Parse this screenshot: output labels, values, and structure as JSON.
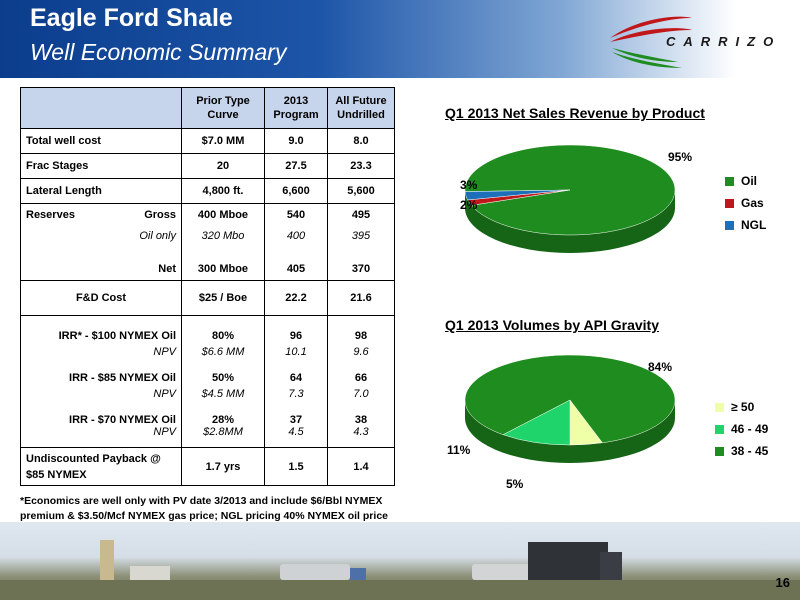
{
  "header": {
    "title": "Eagle Ford Shale",
    "subtitle": "Well Economic Summary"
  },
  "logo": {
    "text": "CARRIZO"
  },
  "table": {
    "headers": [
      "",
      "Prior Type Curve",
      "2013 Program",
      "All Future Undrilled"
    ],
    "rows": {
      "total_cost": {
        "label": "Total well cost",
        "v1": "$7.0 MM",
        "v2": "9.0",
        "v3": "8.0"
      },
      "frac": {
        "label": "Frac Stages",
        "v1": "20",
        "v2": "27.5",
        "v3": "23.3"
      },
      "lateral": {
        "label": "Lateral Length",
        "v1": "4,800 ft.",
        "v2": "6,600",
        "v3": "5,600"
      },
      "reserves": {
        "label": "Reserves",
        "gross_label": "Gross",
        "v1": "400 Mboe",
        "v2": "540",
        "v3": "495"
      },
      "oil_only": {
        "label": "Oil only",
        "v1": "320 Mbo",
        "v2": "400",
        "v3": "395"
      },
      "net": {
        "label": "Net",
        "v1": "300 Mboe",
        "v2": "405",
        "v3": "370"
      },
      "fd": {
        "label": "F&D Cost",
        "v1": "$25 / Boe",
        "v2": "22.2",
        "v3": "21.6"
      },
      "irr100": {
        "label": "IRR* -    $100 NYMEX Oil",
        "v1": "80%",
        "v2": "96",
        "v3": "98"
      },
      "npv100": {
        "label": "NPV",
        "v1": "$6.6 MM",
        "v2": "10.1",
        "v3": "9.6"
      },
      "irr85": {
        "label": "IRR -  $85  NYMEX Oil",
        "v1": "50%",
        "v2": "64",
        "v3": "66"
      },
      "npv85": {
        "label": "NPV",
        "v1": "$4.5 MM",
        "v2": "7.3",
        "v3": "7.0"
      },
      "irr70": {
        "label": "IRR - $70  NYMEX Oil",
        "v1": "28%",
        "v2": "37",
        "v3": "38"
      },
      "npv70": {
        "label": "NPV",
        "v1": "$2.8MM",
        "v2": "4.5",
        "v3": "4.3"
      },
      "payback": {
        "label": "Undiscounted Payback @ $85 NYMEX",
        "v1": "1.7 yrs",
        "v2": "1.5",
        "v3": "1.4"
      }
    }
  },
  "footnote": "*Economics are well only with PV date 3/2013 and include $6/Bbl NYMEX premium & $3.50/Mcf NYMEX gas price; NGL pricing 40% NYMEX oil price",
  "page_number": "16",
  "chart_data": [
    {
      "type": "pie",
      "title": "Q1 2013 Net Sales Revenue by Product",
      "categories": [
        "Oil",
        "Gas",
        "NGL"
      ],
      "values": [
        95,
        2,
        3
      ],
      "labels": [
        "95%",
        "2%",
        "3%"
      ],
      "colors": [
        "#1e8c1e",
        "#c0171b",
        "#1c6fb8"
      ],
      "legend": "right"
    },
    {
      "type": "pie",
      "title": "Q1 2013 Volumes by API Gravity",
      "categories": [
        "≥ 50",
        "46  -  49",
        "38  -  45"
      ],
      "values": [
        5,
        11,
        84
      ],
      "labels": [
        "5%",
        "11%",
        "84%"
      ],
      "colors": [
        "#efffa8",
        "#1fd46b",
        "#1e8c1e"
      ],
      "legend": "right"
    }
  ]
}
